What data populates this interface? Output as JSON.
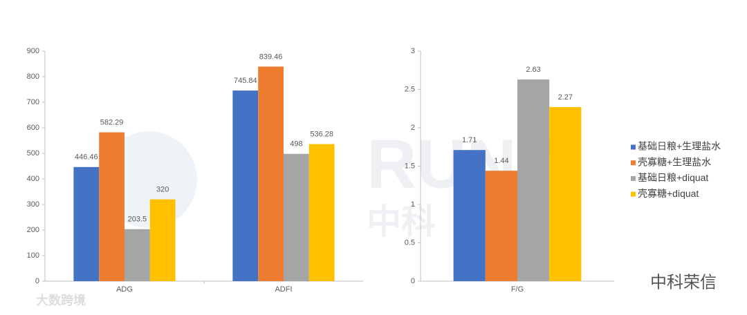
{
  "chart_data": [
    {
      "type": "bar",
      "categories": [
        "ADG",
        "ADFI"
      ],
      "series": [
        {
          "color": "#4472c4",
          "values": [
            446.46,
            745.84
          ]
        },
        {
          "color": "#ed7d31",
          "values": [
            582.29,
            839.46
          ]
        },
        {
          "color": "#a5a5a5",
          "values": [
            203.5,
            498
          ]
        },
        {
          "color": "#ffc000",
          "values": [
            320,
            536.28
          ]
        }
      ],
      "ylim": [
        0,
        900
      ],
      "yticks": [
        0,
        100,
        200,
        300,
        400,
        500,
        600,
        700,
        800,
        900
      ],
      "grid": false
    },
    {
      "type": "bar",
      "categories": [
        "F/G"
      ],
      "series": [
        {
          "name": "基础日粮+生理盐水",
          "color": "#4472c4",
          "values": [
            1.71
          ]
        },
        {
          "name": "壳寡糖+生理盐水",
          "color": "#ed7d31",
          "values": [
            1.44
          ]
        },
        {
          "name": "基础日粮+diquat",
          "color": "#a5a5a5",
          "values": [
            2.63
          ]
        },
        {
          "name": "壳寡糖+diquat",
          "color": "#ffc000",
          "values": [
            2.27
          ]
        }
      ],
      "ylim": [
        0,
        3
      ],
      "yticks": [
        0,
        0.5,
        1,
        1.5,
        2,
        2.5,
        3
      ],
      "grid": false,
      "legend": "right"
    }
  ],
  "watermarks": [
    "RUNIN",
    "中科",
    "中科荣信",
    "大数跨境"
  ]
}
